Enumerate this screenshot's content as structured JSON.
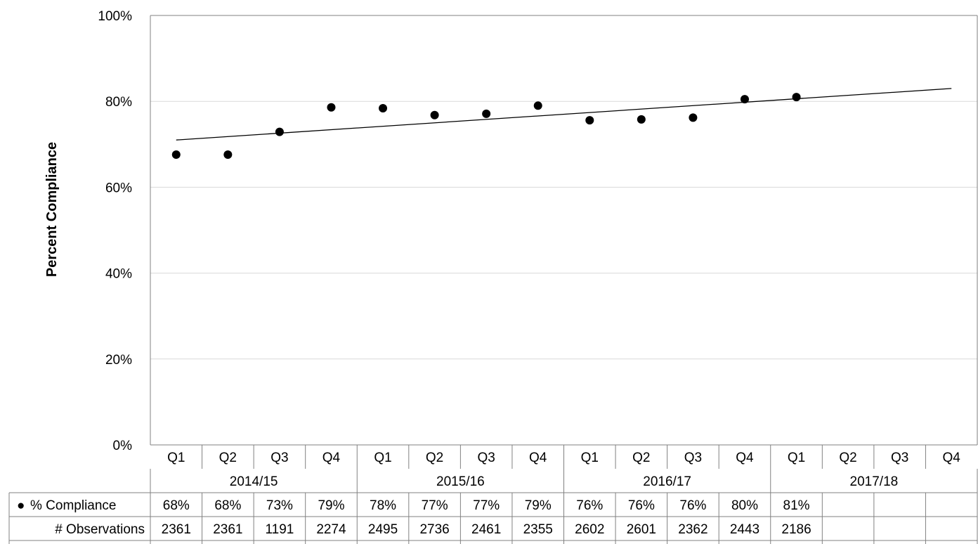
{
  "chart_data": {
    "type": "scatter",
    "ylabel": "Percent Compliance",
    "ylim": [
      0,
      100
    ],
    "yticks": [
      "0%",
      "20%",
      "40%",
      "60%",
      "80%",
      "100%"
    ],
    "grid": true,
    "quarters": [
      "Q1",
      "Q2",
      "Q3",
      "Q4",
      "Q1",
      "Q2",
      "Q3",
      "Q4",
      "Q1",
      "Q2",
      "Q3",
      "Q4",
      "Q1",
      "Q2",
      "Q3",
      "Q4"
    ],
    "years": [
      "2014/15",
      "2015/16",
      "2016/17",
      "2017/18"
    ],
    "series": [
      {
        "name": "% Compliance",
        "marker": "circle",
        "color": "#000000",
        "values": [
          67.6,
          67.6,
          72.9,
          78.6,
          78.4,
          76.8,
          77.1,
          79.0,
          75.6,
          75.8,
          76.2,
          80.5,
          81.0,
          null,
          null,
          null
        ]
      }
    ],
    "trendline": {
      "type": "linear",
      "color": "#000000",
      "start_value": 71.0,
      "end_value": 83.0
    },
    "table": {
      "rows": [
        {
          "label": "% Compliance",
          "marker": "●",
          "cells": [
            "68%",
            "68%",
            "73%",
            "79%",
            "78%",
            "77%",
            "77%",
            "79%",
            "76%",
            "76%",
            "76%",
            "80%",
            "81%",
            "",
            "",
            ""
          ]
        },
        {
          "label": "# Observations",
          "cells": [
            "2361",
            "2361",
            "1191",
            "2274",
            "2495",
            "2736",
            "2461",
            "2355",
            "2602",
            "2601",
            "2362",
            "2443",
            "2186",
            "",
            "",
            ""
          ]
        }
      ]
    }
  }
}
